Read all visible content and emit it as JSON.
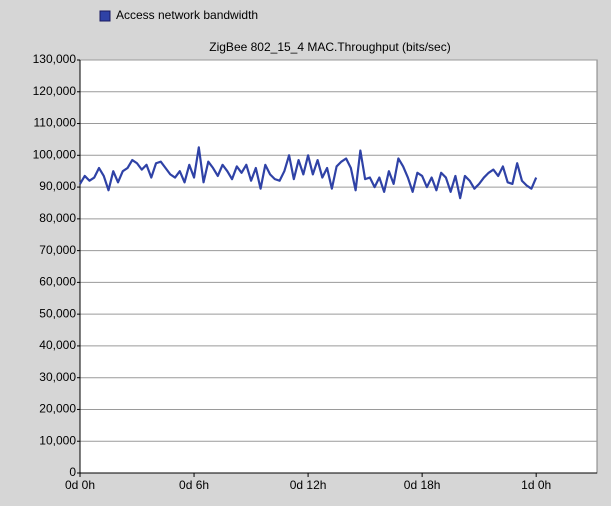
{
  "chart_data": {
    "type": "line",
    "title": "ZigBee 802_15_4 MAC.Throughput (bits/sec)",
    "x": [
      0,
      0.25,
      0.5,
      0.75,
      1,
      1.25,
      1.5,
      1.75,
      2,
      2.25,
      2.5,
      2.75,
      3,
      3.25,
      3.5,
      3.75,
      4,
      4.25,
      4.5,
      4.75,
      5,
      5.25,
      5.5,
      5.75,
      6,
      6.25,
      6.5,
      6.75,
      7,
      7.25,
      7.5,
      7.75,
      8,
      8.25,
      8.5,
      8.75,
      9,
      9.25,
      9.5,
      9.75,
      10,
      10.25,
      10.5,
      10.75,
      11,
      11.25,
      11.5,
      11.75,
      12,
      12.25,
      12.5,
      12.75,
      13,
      13.25,
      13.5,
      13.75,
      14,
      14.25,
      14.5,
      14.75,
      15,
      15.25,
      15.5,
      15.75,
      16,
      16.25,
      16.5,
      16.75,
      17,
      17.25,
      17.5,
      17.75,
      18,
      18.25,
      18.5,
      18.75,
      19,
      19.25,
      19.5,
      19.75,
      20,
      20.25,
      20.5,
      20.75,
      21,
      21.25,
      21.5,
      21.75,
      22,
      22.25,
      22.5,
      22.75,
      23,
      23.25,
      23.5,
      23.75,
      24
    ],
    "series": [
      {
        "name": "Access network bandwidth",
        "color": "#2f42a6",
        "values": [
          91000,
          93500,
          92000,
          93000,
          96000,
          93500,
          89000,
          95000,
          91500,
          95000,
          96000,
          98500,
          97500,
          95500,
          97000,
          93000,
          97500,
          98000,
          96000,
          94000,
          93000,
          95000,
          91500,
          97000,
          93000,
          102500,
          91500,
          98000,
          96000,
          93500,
          97000,
          95000,
          92500,
          96500,
          94500,
          97000,
          92000,
          96000,
          89500,
          97000,
          94000,
          92500,
          92000,
          95000,
          100000,
          92500,
          98500,
          94000,
          100000,
          94000,
          98500,
          93000,
          96000,
          89500,
          96500,
          98000,
          99000,
          96000,
          89000,
          101500,
          92500,
          93000,
          90000,
          93000,
          88500,
          95000,
          91000,
          99000,
          96500,
          93000,
          88500,
          94500,
          93500,
          90000,
          93000,
          89000,
          94500,
          93000,
          88500,
          93500,
          86500,
          93500,
          92000,
          89500,
          91000,
          93000,
          94500,
          95500,
          93500,
          96500,
          91500,
          91000,
          97500,
          92000,
          90500,
          89500,
          93000
        ]
      }
    ],
    "xlim": [
      0,
      27.2
    ],
    "xticks": [
      {
        "value": 0,
        "label": "0d 0h"
      },
      {
        "value": 6,
        "label": "0d 6h"
      },
      {
        "value": 12,
        "label": "0d 12h"
      },
      {
        "value": 18,
        "label": "0d 18h"
      },
      {
        "value": 24,
        "label": "1d 0h"
      }
    ],
    "ylim": [
      0,
      130000
    ],
    "yticks": [
      0,
      {
        "value": 10000,
        "label": "10,000"
      },
      {
        "value": 20000,
        "label": "20,000"
      },
      {
        "value": 30000,
        "label": "30,000"
      },
      {
        "value": 40000,
        "label": "40,000"
      },
      {
        "value": 50000,
        "label": "50,000"
      },
      {
        "value": 60000,
        "label": "60,000"
      },
      {
        "value": 70000,
        "label": "70,000"
      },
      {
        "value": 80000,
        "label": "80,000"
      },
      {
        "value": 90000,
        "label": "90,000"
      },
      {
        "value": 100000,
        "label": "100,000"
      },
      {
        "value": 110000,
        "label": "110,000"
      },
      {
        "value": 120000,
        "label": "120,000"
      },
      {
        "value": 130000,
        "label": "130,000"
      }
    ],
    "grid": true,
    "legend": "top"
  }
}
